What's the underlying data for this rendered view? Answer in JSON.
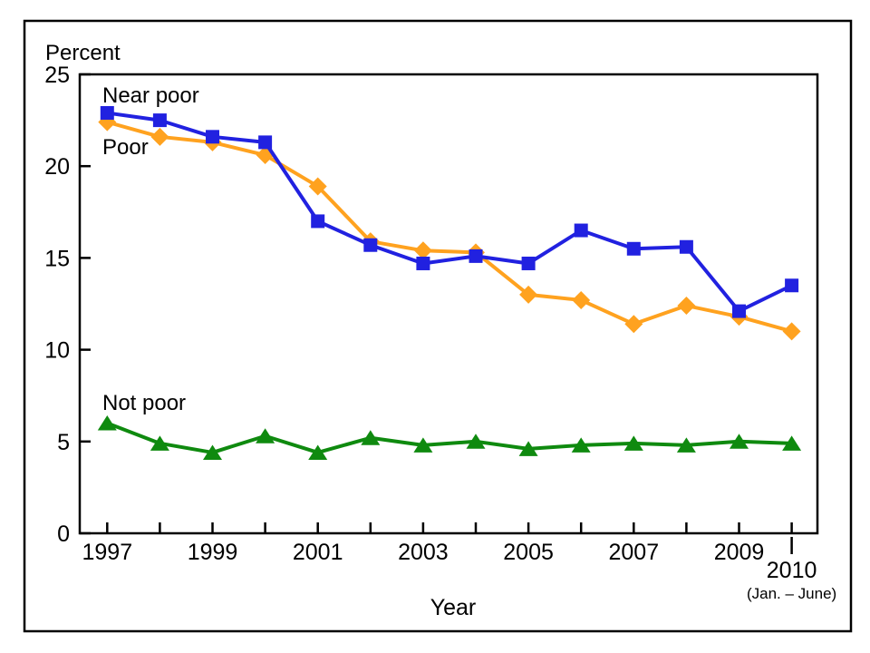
{
  "chart_data": {
    "type": "line",
    "title": "",
    "ylabel": "Percent",
    "xlabel": "Year",
    "ylim": [
      0,
      25
    ],
    "yticks": [
      0,
      5,
      10,
      15,
      20,
      25
    ],
    "grid": false,
    "legend_position": "inline-labels-left",
    "years": [
      1997,
      1998,
      1999,
      2000,
      2001,
      2002,
      2003,
      2004,
      2005,
      2006,
      2007,
      2008,
      2009,
      2010
    ],
    "labeled_years": [
      1997,
      1999,
      2001,
      2003,
      2005,
      2007,
      2009
    ],
    "final_year": {
      "label": "2010",
      "note": "(Jan. – June)"
    },
    "series": [
      {
        "name": "Near poor",
        "color": "#2121e0",
        "marker": "square",
        "values": [
          22.9,
          22.5,
          21.6,
          21.3,
          17.0,
          15.7,
          14.7,
          15.1,
          14.7,
          16.5,
          15.5,
          15.6,
          12.1,
          13.5
        ]
      },
      {
        "name": "Poor",
        "color": "#ffa21f",
        "marker": "diamond",
        "values": [
          22.4,
          21.6,
          21.3,
          20.6,
          18.9,
          15.9,
          15.4,
          15.3,
          13.0,
          12.7,
          11.4,
          12.4,
          11.8,
          11.0
        ]
      },
      {
        "name": "Not poor",
        "color": "#0f8a0f",
        "marker": "triangle-up",
        "values": [
          6.0,
          4.9,
          4.4,
          5.3,
          4.4,
          5.2,
          4.8,
          5.0,
          4.6,
          4.8,
          4.9,
          4.8,
          5.0,
          4.9
        ]
      }
    ]
  }
}
